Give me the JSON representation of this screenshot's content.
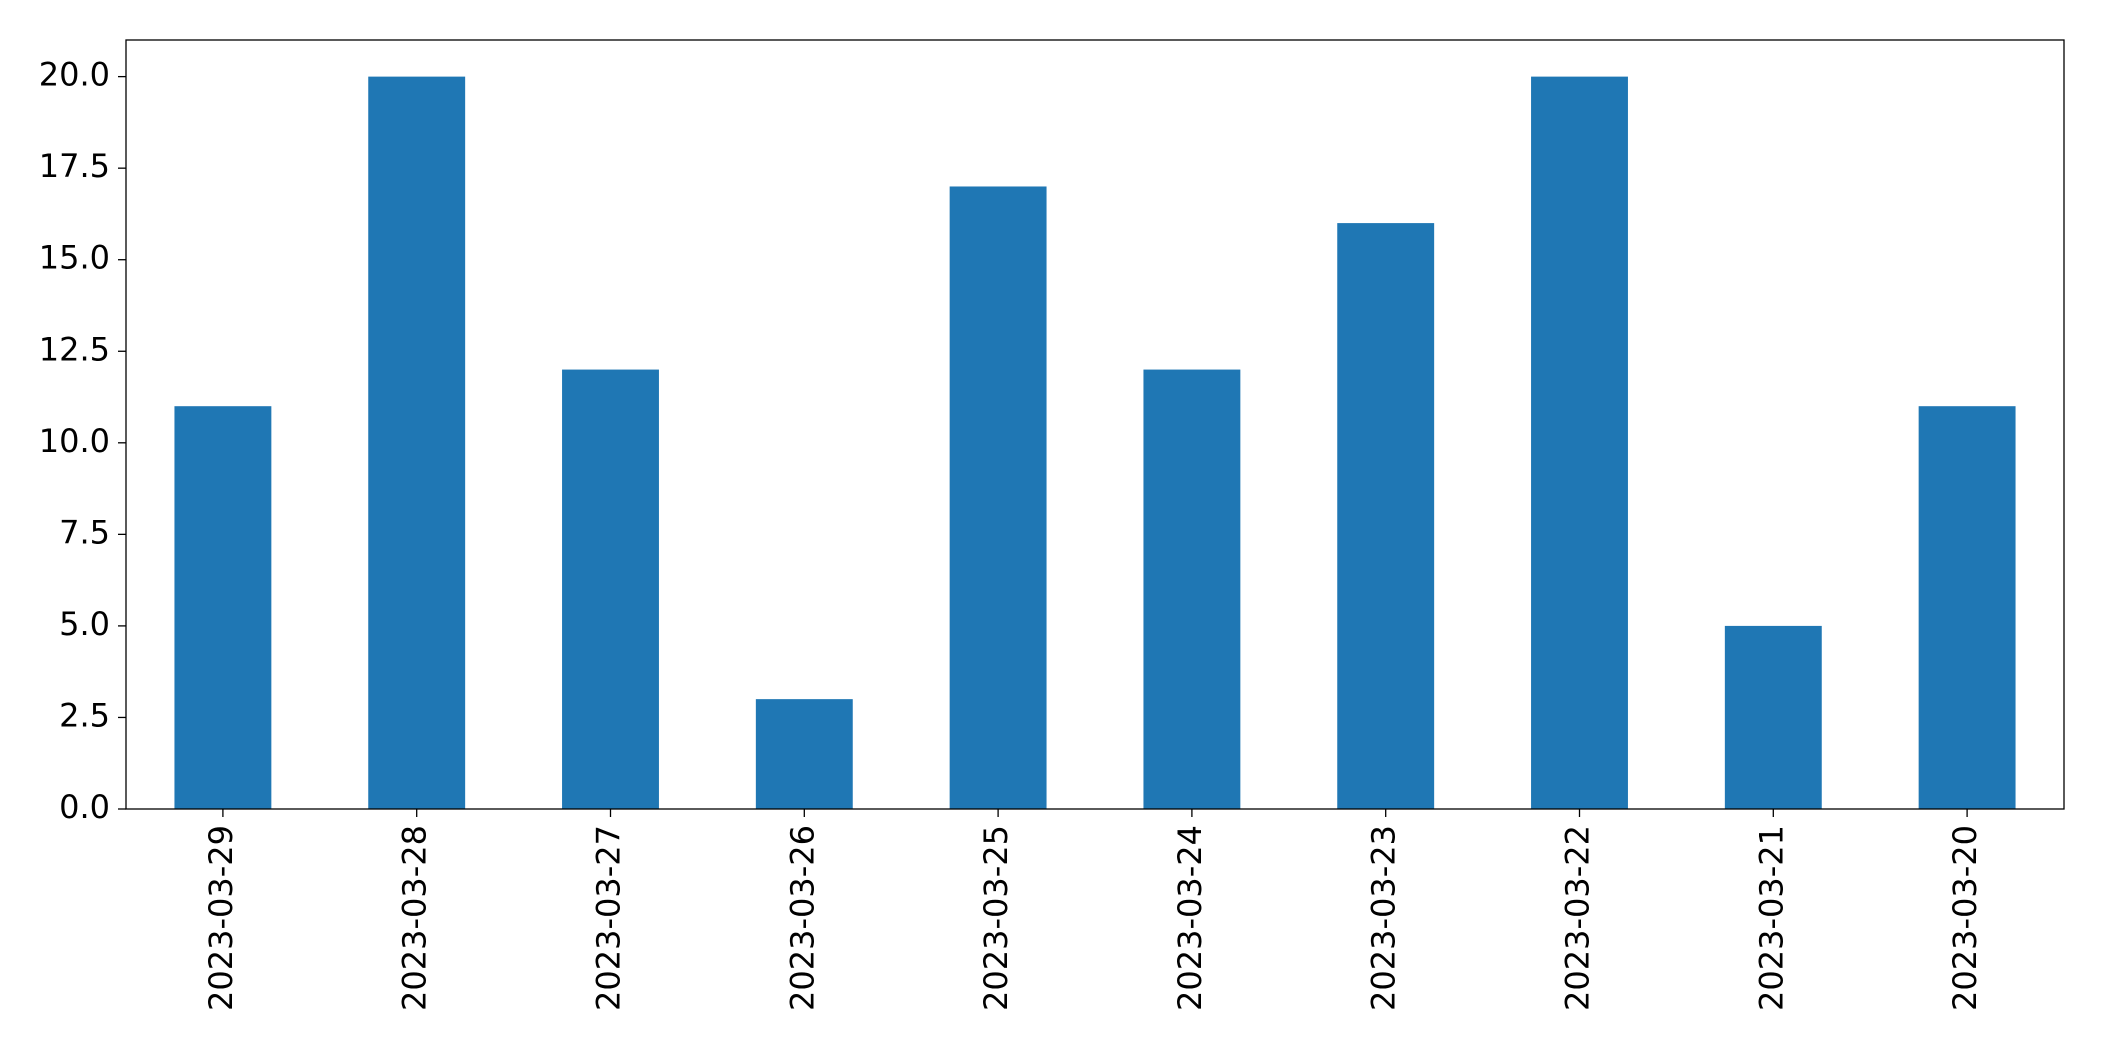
{
  "chart_data": {
    "type": "bar",
    "categories": [
      "2023-03-29",
      "2023-03-28",
      "2023-03-27",
      "2023-03-26",
      "2023-03-25",
      "2023-03-24",
      "2023-03-23",
      "2023-03-22",
      "2023-03-21",
      "2023-03-20"
    ],
    "values": [
      11,
      20,
      12,
      3,
      17,
      12,
      16,
      20,
      5,
      11
    ],
    "color": "#1f77b4",
    "ylim": [
      0,
      21
    ],
    "yticks": [
      {
        "value": 0,
        "label": "0.0"
      },
      2.5,
      {
        "value": 5,
        "label": "5.0"
      },
      7.5,
      {
        "value": 10,
        "label": "10.0"
      },
      12.5,
      {
        "value": 15,
        "label": "15.0"
      },
      17.5,
      {
        "value": 20,
        "label": "20.0"
      }
    ],
    "grid": false
  }
}
